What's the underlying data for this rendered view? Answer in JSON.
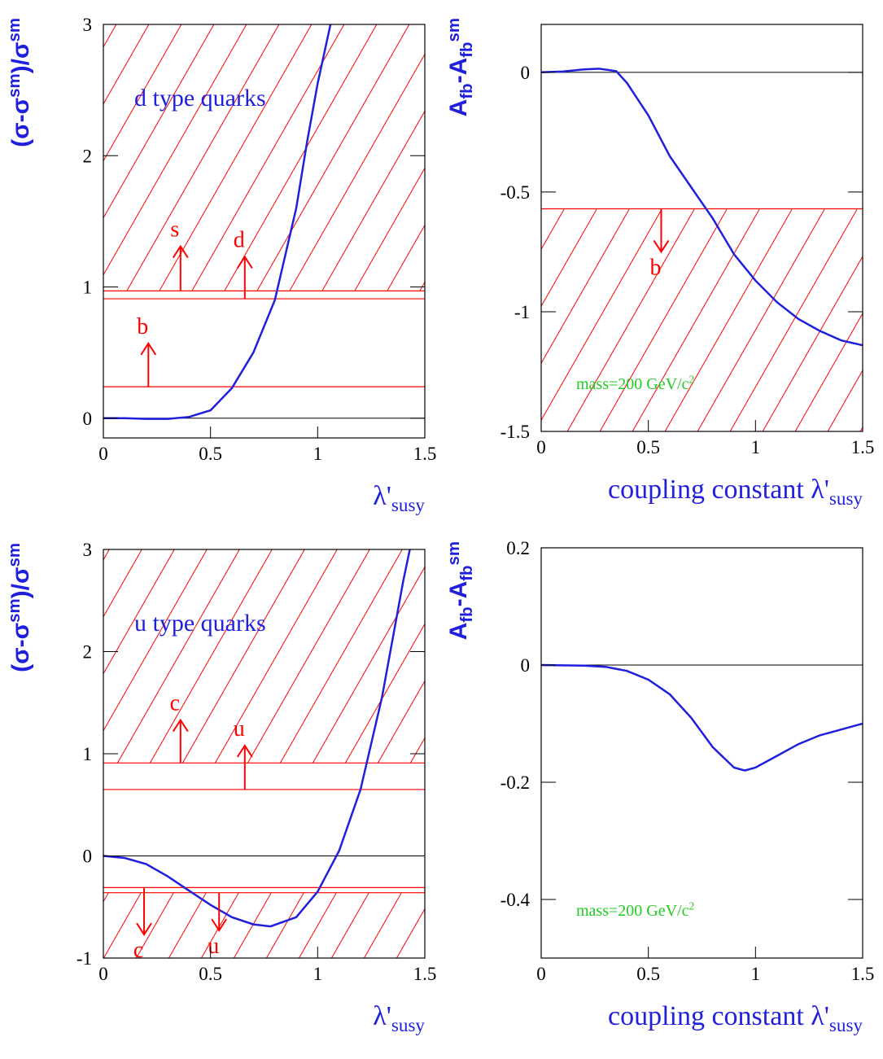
{
  "chart_data": [
    {
      "type": "line",
      "annotation": {
        "color": "#1f1fdd",
        "segments": [
          {
            "text": "d type quarks"
          }
        ]
      },
      "xlabel": [
        {
          "text": "λ'"
        },
        {
          "text": "susy",
          "sub": true
        }
      ],
      "ylabel": [
        {
          "text": "(σ-σ"
        },
        {
          "text": "sm",
          "sup": true
        },
        {
          "text": ")/σ"
        },
        {
          "text": "sm",
          "sup": true
        }
      ],
      "x": [
        0,
        0.1,
        0.2,
        0.3,
        0.4,
        0.5,
        0.6,
        0.7,
        0.8,
        0.9,
        0.95,
        1.0,
        1.06
      ],
      "series": [
        {
          "color": "#1f1fdd",
          "values": [
            0,
            0,
            -0.005,
            -0.005,
            0.01,
            0.06,
            0.23,
            0.5,
            0.9,
            1.6,
            2.1,
            2.55,
            3
          ]
        }
      ],
      "xlim": [
        0,
        1.5
      ],
      "ylim": [
        -0.15,
        3
      ],
      "xticks": [
        0,
        0.5,
        1,
        1.5
      ],
      "yticks": [
        0,
        1,
        2,
        3
      ],
      "reference_line": 0,
      "limit_color": "#ff0000",
      "limits": [
        {
          "value": 0.97,
          "excluded": "above"
        },
        {
          "value": 0.91
        },
        {
          "value": 0.24
        }
      ],
      "arrows": [
        {
          "label": "s",
          "x": 0.36,
          "from": 0.97,
          "to": 1.31
        },
        {
          "label": "d",
          "x": 0.66,
          "from": 0.91,
          "to": 1.23
        },
        {
          "label": "b",
          "x": 0.21,
          "from": 0.24,
          "to": 0.57
        }
      ]
    },
    {
      "type": "line",
      "annotation": {
        "color": "#22cc22",
        "segments": [
          {
            "text": "mass=200 GeV/c"
          },
          {
            "text": "2",
            "sup": true
          }
        ]
      },
      "xlabel": [
        {
          "text": "coupling constant λ'"
        },
        {
          "text": "susy",
          "sub": true
        }
      ],
      "ylabel": [
        {
          "text": "A"
        },
        {
          "text": "fb",
          "sub": true
        },
        {
          "text": "-A"
        },
        {
          "text": "fb",
          "sub": true
        },
        {
          "text": "sm",
          "sup": true
        }
      ],
      "x": [
        0,
        0.1,
        0.2,
        0.27,
        0.35,
        0.4,
        0.5,
        0.6,
        0.7,
        0.8,
        0.9,
        1.0,
        1.1,
        1.2,
        1.3,
        1.4,
        1.5
      ],
      "series": [
        {
          "color": "#1f1fdd",
          "values": [
            0,
            0.003,
            0.012,
            0.015,
            0.005,
            -0.044,
            -0.18,
            -0.35,
            -0.48,
            -0.61,
            -0.76,
            -0.87,
            -0.96,
            -1.03,
            -1.08,
            -1.12,
            -1.14
          ]
        }
      ],
      "xlim": [
        0,
        1.5
      ],
      "ylim": [
        -1.5,
        0.2
      ],
      "xticks": [
        0,
        0.5,
        1,
        1.5
      ],
      "yticks": [
        0,
        -0.5,
        -1,
        -1.5
      ],
      "reference_line": 0,
      "limit_color": "#ff0000",
      "limits": [
        {
          "value": -0.57,
          "excluded": "below"
        }
      ],
      "arrows": [
        {
          "label": "b",
          "x": 0.56,
          "from": -0.57,
          "to": -0.75
        }
      ]
    },
    {
      "type": "line",
      "annotation": {
        "color": "#1f1fdd",
        "segments": [
          {
            "text": "u type quarks"
          }
        ]
      },
      "xlabel": [
        {
          "text": "λ'"
        },
        {
          "text": "susy",
          "sub": true
        }
      ],
      "ylabel": [
        {
          "text": "(σ-σ"
        },
        {
          "text": "sm",
          "sup": true
        },
        {
          "text": ")/σ"
        },
        {
          "text": "sm",
          "sup": true
        }
      ],
      "x": [
        0,
        0.1,
        0.2,
        0.3,
        0.4,
        0.5,
        0.6,
        0.7,
        0.78,
        0.9,
        1.0,
        1.1,
        1.2,
        1.3,
        1.4,
        1.43
      ],
      "series": [
        {
          "color": "#1f1fdd",
          "values": [
            0,
            -0.02,
            -0.08,
            -0.2,
            -0.34,
            -0.48,
            -0.6,
            -0.67,
            -0.69,
            -0.6,
            -0.35,
            0.05,
            0.65,
            1.55,
            2.7,
            3
          ]
        }
      ],
      "xlim": [
        0,
        1.5
      ],
      "ylim": [
        -1,
        3
      ],
      "xticks": [
        0,
        0.5,
        1,
        1.5
      ],
      "yticks": [
        -1,
        0,
        1,
        2,
        3
      ],
      "reference_line": 0,
      "limit_color": "#ff0000",
      "limits": [
        {
          "value": 0.91,
          "excluded": "above"
        },
        {
          "value": 0.65
        },
        {
          "value": -0.31
        },
        {
          "value": -0.36,
          "excluded": "below"
        }
      ],
      "arrows": [
        {
          "label": "c",
          "x": 0.36,
          "from": 0.91,
          "to": 1.33
        },
        {
          "label": "u",
          "x": 0.66,
          "from": 0.65,
          "to": 1.08
        },
        {
          "label": "c",
          "x": 0.19,
          "from": -0.31,
          "to": -0.77
        },
        {
          "label": "u",
          "x": 0.54,
          "from": -0.36,
          "to": -0.73
        }
      ]
    },
    {
      "type": "line",
      "annotation": {
        "color": "#22cc22",
        "segments": [
          {
            "text": "mass=200 GeV/c"
          },
          {
            "text": "2",
            "sup": true
          }
        ]
      },
      "xlabel": [
        {
          "text": "coupling constant λ'"
        },
        {
          "text": "susy",
          "sub": true
        }
      ],
      "ylabel": [
        {
          "text": "A"
        },
        {
          "text": "fb",
          "sub": true
        },
        {
          "text": "-A"
        },
        {
          "text": "fb",
          "sub": true
        },
        {
          "text": "sm",
          "sup": true
        }
      ],
      "x": [
        0,
        0.2,
        0.3,
        0.4,
        0.5,
        0.6,
        0.7,
        0.8,
        0.9,
        0.95,
        1.0,
        1.1,
        1.2,
        1.3,
        1.4,
        1.5
      ],
      "series": [
        {
          "color": "#1f1fdd",
          "values": [
            0,
            -0.001,
            -0.003,
            -0.01,
            -0.025,
            -0.05,
            -0.09,
            -0.14,
            -0.175,
            -0.18,
            -0.175,
            -0.155,
            -0.135,
            -0.12,
            -0.11,
            -0.1
          ]
        }
      ],
      "xlim": [
        0,
        1.5
      ],
      "ylim": [
        -0.5,
        0.2
      ],
      "xticks": [
        0,
        0.5,
        1,
        1.5
      ],
      "yticks": [
        0.2,
        0,
        -0.2,
        -0.4
      ],
      "reference_line": 0,
      "limits": [],
      "arrows": []
    }
  ]
}
